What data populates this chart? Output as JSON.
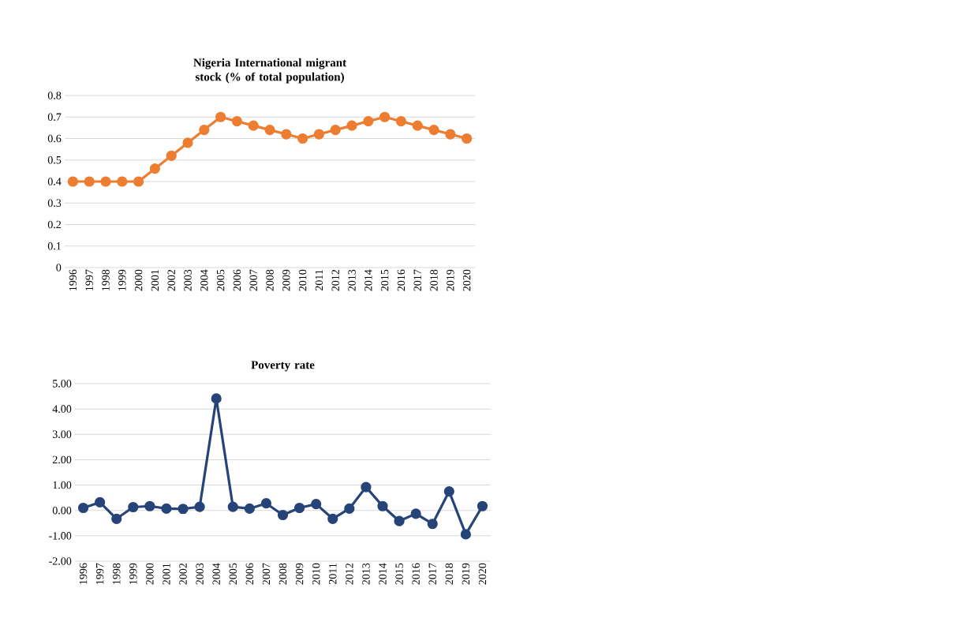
{
  "chart_data": [
    {
      "type": "line",
      "title": "Nigeria International migrant stock (% of total population)",
      "categories": [
        "1996",
        "1997",
        "1998",
        "1999",
        "2000",
        "2001",
        "2002",
        "2003",
        "2004",
        "2005",
        "2006",
        "2007",
        "2008",
        "2009",
        "2010",
        "2011",
        "2012",
        "2013",
        "2014",
        "2015",
        "2016",
        "2017",
        "2018",
        "2019",
        "2020"
      ],
      "series": [
        {
          "color": "#ed7d31",
          "values": [
            0.4,
            0.4,
            0.4,
            0.4,
            0.4,
            0.46,
            0.52,
            0.58,
            0.64,
            0.7,
            0.68,
            0.66,
            0.64,
            0.62,
            0.6,
            0.62,
            0.64,
            0.66,
            0.68,
            0.7,
            0.68,
            0.66,
            0.64,
            0.62,
            0.6
          ]
        }
      ],
      "ylim": [
        0,
        0.8
      ],
      "yticks": [
        0,
        0.1,
        0.2,
        0.3,
        0.4,
        0.5,
        0.6,
        0.7,
        0.8
      ],
      "grid": "y",
      "marker": "circle",
      "line_style": "solid"
    },
    {
      "type": "line",
      "title": "Poverty rate",
      "categories": [
        "1996",
        "1997",
        "1998",
        "1999",
        "2000",
        "2001",
        "2002",
        "2003",
        "2004",
        "2005",
        "2006",
        "2007",
        "2008",
        "2009",
        "2010",
        "2011",
        "2012",
        "2013",
        "2014",
        "2015",
        "2016",
        "2017",
        "2018",
        "2019",
        "2020"
      ],
      "series": [
        {
          "color": "#264478",
          "values": [
            0.1,
            0.32,
            -0.33,
            0.13,
            0.17,
            0.07,
            0.06,
            0.14,
            4.41,
            0.14,
            0.07,
            0.28,
            -0.18,
            0.1,
            0.25,
            -0.33,
            0.07,
            0.92,
            0.17,
            -0.42,
            -0.13,
            -0.53,
            0.75,
            -0.94,
            0.17
          ]
        }
      ],
      "ylim": [
        -2,
        5
      ],
      "yticks": [
        {
          "value": -2,
          "label": "-2.00"
        },
        {
          "value": -1,
          "label": "-1.00"
        },
        {
          "value": 0,
          "label": "0.00"
        },
        {
          "value": 1,
          "label": "1.00"
        },
        {
          "value": 2,
          "label": "2.00"
        },
        {
          "value": 3,
          "label": "3.00"
        },
        {
          "value": 4,
          "label": "4.00"
        },
        {
          "value": 5,
          "label": "5.00"
        }
      ],
      "grid": "y",
      "marker": "circle",
      "line_style": "solid"
    }
  ]
}
